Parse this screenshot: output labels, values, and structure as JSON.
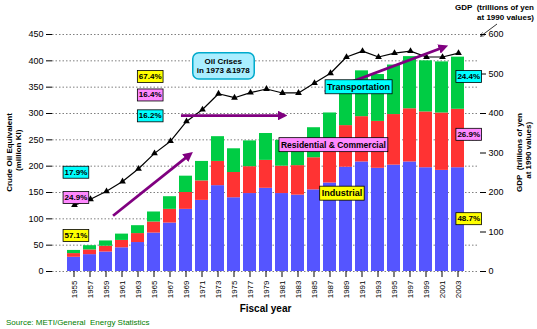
{
  "chart_data": {
    "type": "bar",
    "stacked": true,
    "categories": [
      "1955",
      "1957",
      "1959",
      "1961",
      "1963",
      "1965",
      "1967",
      "1969",
      "1971",
      "1973",
      "1975",
      "1977",
      "1979",
      "1981",
      "1983",
      "1985",
      "1987",
      "1989",
      "1991",
      "1993",
      "1995",
      "1997",
      "1999",
      "2001",
      "2003"
    ],
    "xlabel": "Fiscal year",
    "ylabel": "Crude Oil Equivalent\n  (million KI)",
    "y2label": "GDP  (trillions of yen\n  at 1990 values)",
    "ylim": [
      0,
      450
    ],
    "yticks": [
      0,
      50,
      100,
      150,
      200,
      250,
      300,
      350,
      400,
      450
    ],
    "y2lim": [
      0,
      600
    ],
    "y2ticks": [
      0,
      100,
      200,
      300,
      400,
      500,
      600
    ],
    "grid": true,
    "series": [
      {
        "name": "Industrial",
        "color": "#5555ff",
        "values": [
          27,
          32,
          37,
          45,
          55,
          73,
          92,
          118,
          135,
          163,
          140,
          148,
          158,
          148,
          145,
          155,
          168,
          198,
          208,
          196,
          202,
          208,
          197,
          192,
          197
        ]
      },
      {
        "name": "Residential & Commercial",
        "color": "#ff3333",
        "values": [
          7,
          9,
          11,
          14,
          17,
          21,
          26,
          32,
          37,
          46,
          48,
          51,
          53,
          52,
          56,
          61,
          69,
          79,
          86,
          89,
          96,
          101,
          106,
          109,
          111
        ]
      },
      {
        "name": "Transportation",
        "color": "#00cc44",
        "values": [
          6,
          8,
          10,
          12,
          15,
          19,
          24,
          31,
          37,
          47,
          45,
          49,
          51,
          49,
          51,
          57,
          64,
          77,
          87,
          89,
          94,
          99,
          97,
          97,
          99
        ]
      },
      {
        "name": "GDP  (trillions of yen\n  at 1990 values)",
        "type": "line",
        "axis": "y2",
        "color": "#000000",
        "marker": "triangle",
        "values": [
          168,
          183,
          203,
          228,
          260,
          299,
          330,
          380,
          410,
          450,
          440,
          453,
          462,
          452,
          452,
          477,
          502,
          543,
          558,
          543,
          553,
          558,
          543,
          543,
          553
        ]
      }
    ],
    "annotations": [
      {
        "text": "57.1%",
        "series": "Industrial",
        "color": "yellow"
      },
      {
        "text": "24.9%",
        "series": "Residential & Commercial",
        "color": "#ff88ff"
      },
      {
        "text": "17.9%",
        "series": "Transportation",
        "color": "#00ffff"
      },
      {
        "text": "16.2%",
        "series": "Transportation",
        "color": "#00ffff"
      },
      {
        "text": "16.4%",
        "series": "Residential & Commercial",
        "color": "#ff88ff"
      },
      {
        "text": "67.4%",
        "series": "Industrial",
        "color": "yellow"
      },
      {
        "text": "48.7%",
        "series": "Industrial",
        "color": "yellow"
      },
      {
        "text": "26.9%",
        "series": "Residential & Commercial",
        "color": "#ff88ff"
      },
      {
        "text": "24.4%",
        "series": "Transportation",
        "color": "#00ffff"
      },
      {
        "text": "Oil Crises\nin 1973 &1978",
        "color": "#aaeeff"
      }
    ],
    "caption": {
      "text": "Source: METI/General  Energy Statistics",
      "color": "green"
    }
  }
}
